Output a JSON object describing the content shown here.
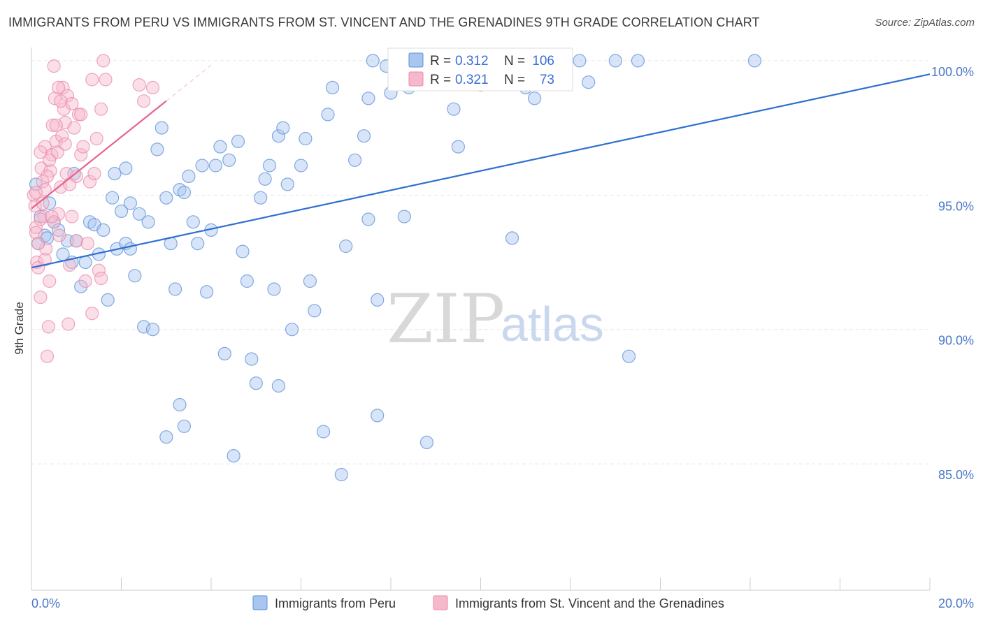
{
  "header": {
    "title": "IMMIGRANTS FROM PERU VS IMMIGRANTS FROM ST. VINCENT AND THE GRENADINES 9TH GRADE CORRELATION CHART",
    "source": "Source: ZipAtlas.com"
  },
  "watermark": {
    "zip": "ZIP",
    "atlas": "atlas"
  },
  "legend": {
    "r_label": "R =",
    "n_label": "N =",
    "series": [
      {
        "r": "0.312",
        "n": "106"
      },
      {
        "r": "0.321",
        "n": "73"
      }
    ]
  },
  "colors": {
    "blue_fill": "#a9c6f0",
    "blue_stroke": "#5b8fd8",
    "blue_line": "#2f6fd0",
    "pink_fill": "#f6b8cb",
    "pink_stroke": "#e98aa8",
    "pink_line": "#e5628d",
    "tick_text": "#4a78c8",
    "grid": "#e6e6e6"
  },
  "chart_data": {
    "type": "scatter",
    "title": "IMMIGRANTS FROM PERU VS IMMIGRANTS FROM ST. VINCENT AND THE GRENADINES 9TH GRADE CORRELATION CHART",
    "xlabel": "",
    "ylabel": "9th Grade",
    "xlim": [
      0,
      20
    ],
    "ylim": [
      80.3,
      100.7
    ],
    "x_ticks": [
      0,
      20
    ],
    "x_tick_labels": [
      "0.0%",
      "20.0%"
    ],
    "y_ticks": [
      85,
      90,
      95,
      100
    ],
    "y_tick_labels": [
      "85.0%",
      "90.0%",
      "95.0%",
      "100.0%"
    ],
    "grid": true,
    "legend_position": "top-center",
    "series": [
      {
        "name": "Immigrants from Peru",
        "color": "#a9c6f0",
        "trend": {
          "x": [
            0,
            20
          ],
          "y": [
            92.3,
            99.5
          ]
        },
        "points": [
          [
            0.1,
            95.4
          ],
          [
            0.2,
            94.2
          ],
          [
            0.3,
            93.5
          ],
          [
            0.4,
            94.7
          ],
          [
            0.5,
            94.0
          ],
          [
            0.6,
            93.7
          ],
          [
            0.7,
            92.8
          ],
          [
            0.8,
            93.3
          ],
          [
            0.9,
            92.5
          ],
          [
            0.95,
            95.8
          ],
          [
            1.0,
            93.3
          ],
          [
            1.1,
            91.6
          ],
          [
            1.2,
            92.5
          ],
          [
            1.3,
            94.0
          ],
          [
            1.4,
            93.9
          ],
          [
            1.5,
            92.8
          ],
          [
            1.6,
            93.7
          ],
          [
            1.7,
            91.1
          ],
          [
            1.8,
            94.9
          ],
          [
            1.85,
            95.8
          ],
          [
            1.9,
            93.0
          ],
          [
            2.0,
            94.4
          ],
          [
            2.1,
            93.2
          ],
          [
            2.2,
            94.7
          ],
          [
            2.3,
            92.0
          ],
          [
            2.2,
            93.0
          ],
          [
            2.4,
            94.3
          ],
          [
            2.5,
            90.1
          ],
          [
            2.6,
            94.0
          ],
          [
            2.7,
            90.0
          ],
          [
            2.8,
            96.7
          ],
          [
            2.9,
            97.5
          ],
          [
            3.0,
            94.9
          ],
          [
            3.1,
            93.2
          ],
          [
            3.2,
            91.5
          ],
          [
            3.3,
            95.2
          ],
          [
            3.4,
            95.1
          ],
          [
            3.5,
            95.7
          ],
          [
            3.6,
            94.0
          ],
          [
            3.7,
            93.2
          ],
          [
            3.8,
            96.1
          ],
          [
            3.9,
            91.4
          ],
          [
            4.0,
            93.7
          ],
          [
            4.1,
            96.1
          ],
          [
            4.2,
            96.8
          ],
          [
            4.3,
            89.1
          ],
          [
            4.4,
            96.3
          ],
          [
            4.5,
            85.3
          ],
          [
            4.6,
            97.0
          ],
          [
            4.7,
            92.9
          ],
          [
            4.8,
            91.8
          ],
          [
            4.9,
            88.9
          ],
          [
            5.0,
            88.0
          ],
          [
            5.1,
            94.9
          ],
          [
            5.2,
            95.6
          ],
          [
            5.3,
            96.1
          ],
          [
            5.4,
            91.5
          ],
          [
            5.5,
            97.2
          ],
          [
            5.5,
            87.9
          ],
          [
            5.6,
            97.5
          ],
          [
            5.7,
            95.4
          ],
          [
            5.8,
            90.0
          ],
          [
            6.0,
            96.1
          ],
          [
            6.1,
            97.1
          ],
          [
            6.2,
            91.8
          ],
          [
            6.3,
            90.7
          ],
          [
            6.5,
            86.2
          ],
          [
            6.6,
            98.0
          ],
          [
            6.7,
            99.0
          ],
          [
            6.9,
            84.6
          ],
          [
            7.0,
            93.1
          ],
          [
            7.2,
            96.3
          ],
          [
            7.4,
            97.2
          ],
          [
            7.5,
            94.1
          ],
          [
            7.5,
            98.6
          ],
          [
            7.6,
            100.0
          ],
          [
            7.7,
            91.1
          ],
          [
            7.7,
            86.8
          ],
          [
            7.9,
            99.8
          ],
          [
            8.0,
            98.8
          ],
          [
            8.1,
            99.2
          ],
          [
            8.2,
            100.0
          ],
          [
            8.3,
            94.2
          ],
          [
            8.4,
            99.0
          ],
          [
            8.8,
            85.8
          ],
          [
            9.0,
            100.0
          ],
          [
            9.4,
            98.2
          ],
          [
            9.5,
            96.8
          ],
          [
            10.0,
            99.1
          ],
          [
            10.3,
            99.3
          ],
          [
            10.7,
            93.4
          ],
          [
            11.0,
            99.0
          ],
          [
            11.2,
            98.6
          ],
          [
            11.5,
            100.0
          ],
          [
            12.2,
            100.0
          ],
          [
            12.4,
            99.2
          ],
          [
            13.0,
            100.0
          ],
          [
            13.3,
            89.0
          ],
          [
            13.5,
            100.0
          ],
          [
            16.1,
            100.0
          ],
          [
            3.0,
            86.0
          ],
          [
            3.3,
            87.2
          ],
          [
            3.4,
            86.4
          ],
          [
            0.15,
            93.2
          ],
          [
            0.35,
            93.4
          ],
          [
            2.1,
            96.0
          ]
        ]
      },
      {
        "name": "Immigrants from St. Vincent and the Grenadines",
        "color": "#f6b8cb",
        "trend": {
          "x": [
            0,
            3.0
          ],
          "y": [
            94.5,
            98.5
          ]
        },
        "points": [
          [
            0.05,
            95.0
          ],
          [
            0.08,
            94.6
          ],
          [
            0.1,
            93.8
          ],
          [
            0.12,
            92.5
          ],
          [
            0.15,
            92.3
          ],
          [
            0.2,
            91.2
          ],
          [
            0.22,
            96.0
          ],
          [
            0.25,
            95.5
          ],
          [
            0.28,
            94.2
          ],
          [
            0.3,
            96.8
          ],
          [
            0.32,
            93.0
          ],
          [
            0.35,
            89.0
          ],
          [
            0.38,
            90.1
          ],
          [
            0.4,
            91.8
          ],
          [
            0.42,
            95.9
          ],
          [
            0.45,
            96.5
          ],
          [
            0.47,
            97.6
          ],
          [
            0.5,
            99.8
          ],
          [
            0.52,
            98.6
          ],
          [
            0.55,
            97.0
          ],
          [
            0.58,
            96.6
          ],
          [
            0.6,
            94.3
          ],
          [
            0.62,
            93.5
          ],
          [
            0.65,
            95.3
          ],
          [
            0.68,
            97.2
          ],
          [
            0.7,
            99.0
          ],
          [
            0.72,
            98.2
          ],
          [
            0.75,
            97.7
          ],
          [
            0.78,
            95.8
          ],
          [
            0.8,
            98.7
          ],
          [
            0.82,
            90.2
          ],
          [
            0.85,
            92.4
          ],
          [
            0.9,
            98.4
          ],
          [
            0.95,
            97.5
          ],
          [
            1.0,
            93.3
          ],
          [
            1.05,
            98.0
          ],
          [
            1.1,
            96.5
          ],
          [
            1.15,
            96.8
          ],
          [
            1.2,
            91.8
          ],
          [
            1.25,
            93.2
          ],
          [
            1.3,
            95.5
          ],
          [
            1.35,
            90.6
          ],
          [
            1.4,
            95.8
          ],
          [
            1.45,
            97.1
          ],
          [
            1.5,
            92.2
          ],
          [
            1.55,
            91.9
          ],
          [
            1.6,
            100.0
          ],
          [
            1.65,
            99.3
          ],
          [
            2.4,
            99.1
          ],
          [
            2.5,
            98.5
          ],
          [
            2.7,
            99.0
          ],
          [
            0.6,
            99.0
          ],
          [
            0.4,
            96.3
          ],
          [
            0.3,
            95.2
          ],
          [
            0.2,
            94.1
          ],
          [
            0.1,
            93.6
          ],
          [
            1.35,
            99.3
          ],
          [
            1.55,
            98.2
          ],
          [
            1.1,
            98.0
          ],
          [
            0.9,
            94.2
          ],
          [
            0.5,
            94.0
          ],
          [
            0.35,
            95.7
          ],
          [
            0.25,
            94.7
          ],
          [
            0.15,
            93.2
          ],
          [
            0.45,
            94.2
          ],
          [
            0.55,
            97.6
          ],
          [
            0.65,
            98.5
          ],
          [
            0.75,
            96.9
          ],
          [
            0.85,
            95.4
          ],
          [
            1.0,
            95.7
          ],
          [
            0.1,
            95.1
          ],
          [
            0.3,
            92.6
          ],
          [
            0.2,
            96.6
          ]
        ]
      }
    ]
  },
  "bottom_legend": {
    "items": [
      {
        "label": "Immigrants from Peru"
      },
      {
        "label": "Immigrants from St. Vincent and the Grenadines"
      }
    ]
  }
}
